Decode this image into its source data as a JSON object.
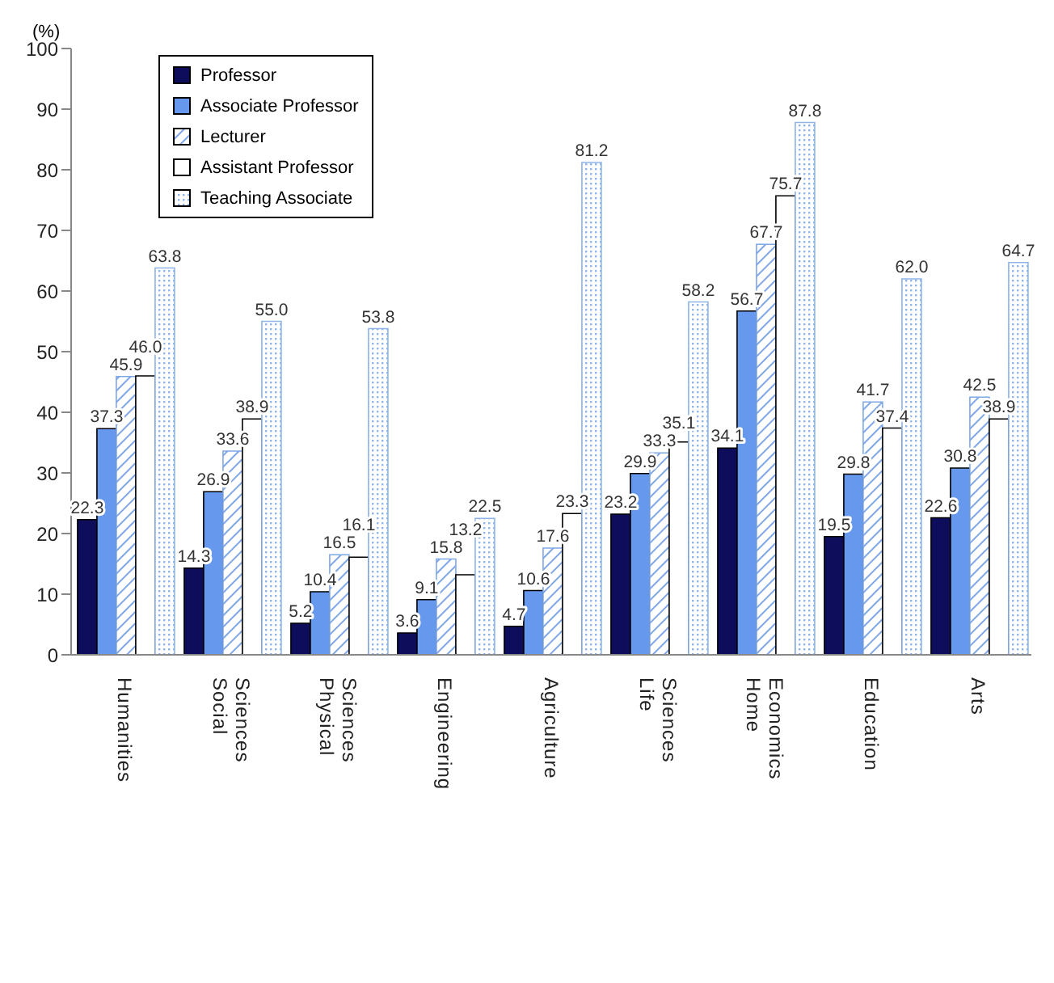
{
  "chart_data": {
    "type": "bar",
    "ylabel": "(%)",
    "categories": [
      "Humanities",
      "Social Sciences",
      "Physical Sciences",
      "Engineering",
      "Agriculture",
      "Life Sciences",
      "Home Economics",
      "Education",
      "Arts"
    ],
    "series": [
      {
        "name": "Professor",
        "color": "#0d0d5c",
        "values": [
          22.3,
          14.3,
          5.2,
          3.6,
          4.7,
          23.2,
          34.1,
          19.5,
          22.6
        ],
        "value_labels": [
          "22.3",
          "14.3",
          "5.2",
          "3.6",
          "4.7",
          "23.2",
          "34.1",
          "19.5",
          "22.6"
        ]
      },
      {
        "name": "Associate Professor",
        "color": "#6699ee",
        "values": [
          37.3,
          26.9,
          10.4,
          9.1,
          10.6,
          29.9,
          56.7,
          29.8,
          30.8
        ],
        "value_labels": [
          "37.3",
          "26.9",
          "10.4",
          "9.1",
          "10.6",
          "29.9",
          "56.7",
          "29.8",
          "30.8"
        ]
      },
      {
        "name": "Lecturer",
        "color": "#7fa7e6",
        "values": [
          45.9,
          33.6,
          16.5,
          15.8,
          17.6,
          33.3,
          67.7,
          41.7,
          42.5
        ],
        "value_labels": [
          "45.9",
          "33.6",
          "16.5",
          "15.8",
          "17.6",
          "33.3",
          "67.7",
          "41.7",
          "42.5"
        ]
      },
      {
        "name": "Assistant Professor",
        "color": "#ffffff",
        "values": [
          46.0,
          38.9,
          16.1,
          13.2,
          23.3,
          35.1,
          75.7,
          37.4,
          38.9
        ],
        "value_labels": [
          "46.0",
          "38.9",
          "16.1",
          "13.2",
          "23.3",
          "35.1",
          "75.7",
          "37.4",
          "38.9"
        ]
      },
      {
        "name": "Teaching Associate",
        "color": "#8fb4ea",
        "values": [
          63.8,
          55.0,
          53.8,
          22.5,
          81.2,
          58.2,
          87.8,
          62.0,
          64.7
        ],
        "value_labels": [
          "63.8",
          "55.0",
          "53.8",
          "22.5",
          "81.2",
          "58.2",
          "87.8",
          "62.0",
          "64.7"
        ]
      }
    ],
    "ylim": [
      0,
      100
    ],
    "yticks": [
      0,
      10,
      20,
      30,
      40,
      50,
      60,
      70,
      80,
      90,
      100
    ],
    "grid": false,
    "legend": "top left"
  }
}
